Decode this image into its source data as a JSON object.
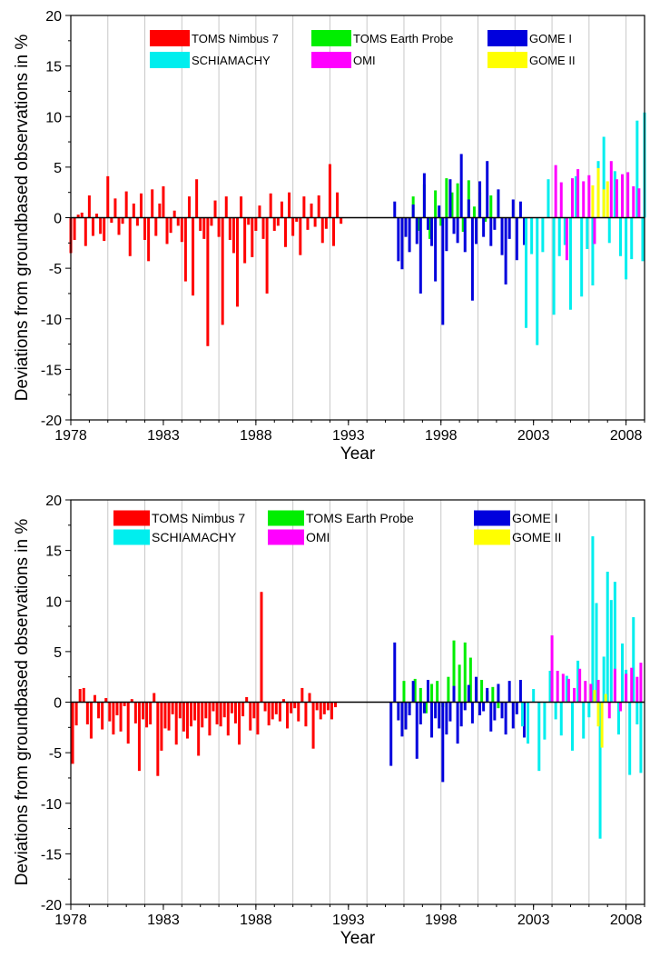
{
  "chart_data": [
    {
      "type": "bar",
      "xlabel": "Year",
      "ylabel": "Deviations from groundbased observations in %",
      "xlim": [
        1978,
        2009
      ],
      "ylim": [
        -20,
        20
      ],
      "xticks": [
        "1978",
        "1983",
        "1988",
        "1993",
        "1998",
        "2003",
        "2008"
      ],
      "yticks": [
        "20",
        "15",
        "10",
        "5",
        "0",
        "-5",
        "-10",
        "-15",
        "-20"
      ],
      "grid": "vertical",
      "legend_position": "top",
      "series": [
        {
          "name": "TOMS Nimbus 7",
          "color": "#ff0000",
          "x": [
            1978.0,
            1978.2,
            1978.4,
            1978.6,
            1978.8,
            1979.0,
            1979.2,
            1979.4,
            1979.6,
            1979.8,
            1980.0,
            1980.2,
            1980.4,
            1980.6,
            1980.8,
            1981.0,
            1981.2,
            1981.4,
            1981.6,
            1981.8,
            1982.0,
            1982.2,
            1982.4,
            1982.6,
            1982.8,
            1983.0,
            1983.2,
            1983.4,
            1983.6,
            1983.8,
            1984.0,
            1984.2,
            1984.4,
            1984.6,
            1984.8,
            1985.0,
            1985.2,
            1985.4,
            1985.6,
            1985.8,
            1986.0,
            1986.2,
            1986.4,
            1986.6,
            1986.8,
            1987.0,
            1987.2,
            1987.4,
            1987.6,
            1987.8,
            1988.0,
            1988.2,
            1988.4,
            1988.6,
            1988.8,
            1989.0,
            1989.2,
            1989.4,
            1989.6,
            1989.8,
            1990.0,
            1990.2,
            1990.4,
            1990.6,
            1990.8,
            1991.0,
            1991.2,
            1991.4,
            1991.6,
            1991.8,
            1992.0,
            1992.2,
            1992.4,
            1992.6,
            1992.8,
            1993.0
          ],
          "values": [
            -3.5,
            -2.2,
            0.3,
            0.5,
            -2.8,
            2.2,
            -1.8,
            0.4,
            -1.6,
            -2.3,
            4.1,
            -0.5,
            1.9,
            -1.7,
            -0.6,
            2.6,
            -3.8,
            1.4,
            -0.8,
            2.4,
            -2.2,
            -4.3,
            2.8,
            -1.8,
            1.4,
            3.1,
            -2.6,
            -1.5,
            0.7,
            -0.8,
            -2.4,
            -6.3,
            2.1,
            -7.7,
            3.8,
            -1.3,
            -2.1,
            -12.7,
            -0.8,
            1.7,
            -1.9,
            -10.6,
            2.1,
            -2.2,
            -3.5,
            -8.8,
            2.1,
            -4.5,
            -0.7,
            -3.9,
            -1.3,
            1.2,
            -2.1,
            -7.5,
            2.4,
            -1.3,
            -0.8,
            1.6,
            -2.9,
            2.5,
            -1.8,
            -0.4,
            -3.7,
            2.1,
            -1.2,
            1.4,
            -0.9,
            2.2,
            -2.5,
            -1.1,
            5.3,
            -2.8,
            2.5,
            -0.6,
            null,
            null
          ]
        },
        {
          "name": "TOMS Earth Probe",
          "color": "#00ee00",
          "x": [
            1996.5,
            1996.8,
            1997.1,
            1997.4,
            1997.7,
            1998.0,
            1998.3,
            1998.6,
            1998.9,
            1999.2,
            1999.5,
            1999.8,
            2000.1,
            2000.4,
            2000.7
          ],
          "values": [
            2.1,
            -1.3,
            3.3,
            -2.1,
            2.7,
            -0.8,
            3.9,
            2.5,
            3.4,
            -1.4,
            3.7,
            1.1,
            2.5,
            -0.4,
            2.2
          ]
        },
        {
          "name": "GOME I",
          "color": "#0000dd",
          "x": [
            1995.5,
            1995.7,
            1995.9,
            1996.1,
            1996.3,
            1996.5,
            1996.7,
            1996.9,
            1997.1,
            1997.3,
            1997.5,
            1997.7,
            1997.9,
            1998.1,
            1998.3,
            1998.5,
            1998.7,
            1998.9,
            1999.1,
            1999.3,
            1999.5,
            1999.7,
            1999.9,
            2000.1,
            2000.3,
            2000.5,
            2000.7,
            2000.9,
            2001.1,
            2001.3,
            2001.5,
            2001.7,
            2001.9,
            2002.1,
            2002.3,
            2002.5
          ],
          "values": [
            1.6,
            -4.3,
            -5.1,
            -1.9,
            -3.4,
            1.3,
            -2.6,
            -7.5,
            4.4,
            -1.2,
            -2.8,
            -6.3,
            1.2,
            -10.6,
            -3.3,
            3.8,
            -1.6,
            -2.5,
            6.3,
            -3.4,
            1.8,
            -8.2,
            -2.6,
            3.6,
            -1.9,
            5.6,
            -2.8,
            -1.2,
            2.8,
            -3.7,
            -6.6,
            -2.1,
            1.8,
            -4.2,
            1.6,
            -2.7
          ]
        },
        {
          "name": "SCHIAMACHY",
          "color": "#00eeee",
          "x": [
            2002.6,
            2002.9,
            2003.2,
            2003.5,
            2003.8,
            2004.1,
            2004.4,
            2004.7,
            2005.0,
            2005.3,
            2005.6,
            2005.9,
            2006.2,
            2006.5,
            2006.8,
            2007.1,
            2007.4,
            2007.7,
            2008.0,
            2008.3,
            2008.6,
            2008.9,
            2009.0
          ],
          "values": [
            -10.9,
            -3.6,
            -12.6,
            -3.4,
            3.8,
            -9.6,
            -3.8,
            -2.7,
            -9.1,
            4.1,
            -7.8,
            -3.1,
            -6.7,
            5.6,
            8.0,
            -2.5,
            4.6,
            -3.8,
            -6.1,
            -4.1,
            9.6,
            -4.3,
            10.4
          ]
        },
        {
          "name": "OMI",
          "color": "#ff00ff",
          "x": [
            2004.2,
            2004.5,
            2004.8,
            2005.1,
            2005.4,
            2005.7,
            2006.0,
            2006.3,
            2007.2,
            2007.5,
            2007.8,
            2008.1,
            2008.4,
            2008.7
          ],
          "values": [
            5.2,
            3.5,
            -4.2,
            3.9,
            4.8,
            3.6,
            4.2,
            -2.6,
            5.6,
            3.8,
            4.3,
            4.5,
            3.1,
            2.9
          ]
        },
        {
          "name": "GOME II",
          "color": "#ffff00",
          "x": [
            2006.2,
            2006.5,
            2006.8,
            2007.0
          ],
          "values": [
            3.2,
            4.9,
            2.8,
            3.6
          ]
        }
      ]
    },
    {
      "type": "bar",
      "xlabel": "Year",
      "ylabel": "Deviations from groundbased observations in %",
      "xlim": [
        1978,
        2009
      ],
      "ylim": [
        -20,
        20
      ],
      "xticks": [
        "1978",
        "1983",
        "1988",
        "1993",
        "1998",
        "2003",
        "2008"
      ],
      "yticks": [
        "20",
        "15",
        "10",
        "5",
        "0",
        "-5",
        "-10",
        "-15",
        "-20"
      ],
      "grid": "vertical",
      "legend_position": "top",
      "series": [
        {
          "name": "TOMS Nimbus 7",
          "color": "#ff0000",
          "x": [
            1978.1,
            1978.3,
            1978.5,
            1978.7,
            1978.9,
            1979.1,
            1979.3,
            1979.5,
            1979.7,
            1979.9,
            1980.1,
            1980.3,
            1980.5,
            1980.7,
            1980.9,
            1981.1,
            1981.3,
            1981.5,
            1981.7,
            1981.9,
            1982.1,
            1982.3,
            1982.5,
            1982.7,
            1982.9,
            1983.1,
            1983.3,
            1983.5,
            1983.7,
            1983.9,
            1984.1,
            1984.3,
            1984.5,
            1984.7,
            1984.9,
            1985.1,
            1985.3,
            1985.5,
            1985.7,
            1985.9,
            1986.1,
            1986.3,
            1986.5,
            1986.7,
            1986.9,
            1987.1,
            1987.3,
            1987.5,
            1987.7,
            1987.9,
            1988.1,
            1988.3,
            1988.5,
            1988.7,
            1988.9,
            1989.1,
            1989.3,
            1989.5,
            1989.7,
            1989.9,
            1990.1,
            1990.3,
            1990.5,
            1990.7,
            1990.9,
            1991.1,
            1991.3,
            1991.5,
            1991.7,
            1991.9,
            1992.1,
            1992.3
          ],
          "values": [
            -6.1,
            -2.3,
            1.3,
            1.4,
            -2.2,
            -3.6,
            0.7,
            -1.6,
            -2.7,
            0.4,
            -1.9,
            -3.2,
            -1.3,
            -2.9,
            -0.4,
            -4.1,
            0.3,
            -2.1,
            -6.8,
            -1.7,
            -2.5,
            -2.2,
            0.9,
            -7.3,
            -4.8,
            -2.6,
            -2.8,
            -1.2,
            -4.2,
            -1.6,
            -2.9,
            -3.6,
            -2.4,
            -1.8,
            -5.3,
            -2.5,
            -1.6,
            -3.3,
            -0.9,
            -2.2,
            -2.4,
            -1.5,
            -3.3,
            -1.1,
            -2.1,
            -4.2,
            -1.4,
            0.5,
            -2.8,
            -1.6,
            -3.2,
            10.9,
            -0.9,
            -2.3,
            -1.7,
            -1.2,
            -1.9,
            0.3,
            -2.6,
            -1.1,
            -0.6,
            -1.9,
            1.4,
            -2.4,
            0.9,
            -4.6,
            -0.8,
            -1.7,
            -1.2,
            -0.8,
            -1.7,
            -0.5
          ]
        },
        {
          "name": "TOMS Earth Probe",
          "color": "#00ee00",
          "x": [
            1996.0,
            1996.3,
            1996.6,
            1996.9,
            1997.2,
            1997.5,
            1997.8,
            1998.1,
            1998.4,
            1998.7,
            1999.0,
            1999.3,
            1999.6,
            1999.9,
            2000.2,
            2000.5,
            2000.8,
            2001.1
          ],
          "values": [
            2.1,
            -0.6,
            2.3,
            1.4,
            -1.1,
            1.8,
            2.1,
            -0.5,
            2.5,
            6.1,
            3.7,
            5.9,
            4.4,
            1.3,
            2.2,
            1.1,
            1.5,
            -0.6
          ]
        },
        {
          "name": "GOME I",
          "color": "#0000dd",
          "x": [
            1995.3,
            1995.5,
            1995.7,
            1995.9,
            1996.1,
            1996.3,
            1996.5,
            1996.7,
            1996.9,
            1997.1,
            1997.3,
            1997.5,
            1997.7,
            1997.9,
            1998.1,
            1998.3,
            1998.5,
            1998.7,
            1998.9,
            1999.1,
            1999.3,
            1999.5,
            1999.7,
            1999.9,
            2000.1,
            2000.3,
            2000.5,
            2000.7,
            2000.9,
            2001.1,
            2001.3,
            2001.5,
            2001.7,
            2001.9,
            2002.1,
            2002.3,
            2002.5
          ],
          "values": [
            -6.3,
            5.9,
            -1.8,
            -3.4,
            -2.7,
            -1.3,
            2.1,
            -5.6,
            -2.2,
            -1.1,
            2.2,
            -3.5,
            -1.6,
            -2.6,
            -7.9,
            -3.2,
            -1.9,
            1.6,
            -4.1,
            -2.4,
            -0.8,
            1.7,
            -2.1,
            2.5,
            -1.3,
            -0.9,
            1.4,
            -2.9,
            -1.8,
            1.8,
            -1.6,
            -3.2,
            2.1,
            -2.6,
            -1.2,
            2.2,
            -3.5
          ]
        },
        {
          "name": "SCHIAMACHY",
          "color": "#00eeee",
          "x": [
            2002.4,
            2002.7,
            2003.0,
            2003.3,
            2003.6,
            2003.9,
            2004.2,
            2004.5,
            2004.8,
            2005.1,
            2005.4,
            2005.7,
            2006.0,
            2006.2,
            2006.4,
            2006.6,
            2006.8,
            2007.0,
            2007.2,
            2007.4,
            2007.6,
            2007.8,
            2008.0,
            2008.2,
            2008.4,
            2008.6,
            2008.8
          ],
          "values": [
            -2.4,
            -4.1,
            1.3,
            -6.8,
            -3.7,
            3.1,
            -1.7,
            -3.3,
            2.6,
            -4.8,
            4.1,
            -3.6,
            -1.5,
            16.4,
            9.8,
            -13.5,
            4.5,
            12.9,
            10.1,
            11.9,
            -3.2,
            5.8,
            3.2,
            -7.2,
            8.4,
            -2.2,
            -7.0
          ]
        },
        {
          "name": "OMI",
          "color": "#ff00ff",
          "x": [
            2004.0,
            2004.3,
            2004.6,
            2004.9,
            2005.2,
            2005.5,
            2005.8,
            2006.1,
            2006.5,
            2007.1,
            2007.4,
            2007.7,
            2008.0,
            2008.3,
            2008.6,
            2008.8
          ],
          "values": [
            6.6,
            3.1,
            2.8,
            2.3,
            1.4,
            3.3,
            2.1,
            1.8,
            2.2,
            -1.6,
            3.3,
            -0.9,
            2.8,
            3.4,
            2.5,
            3.9
          ]
        },
        {
          "name": "GOME II",
          "color": "#ffff00",
          "x": [
            2006.3,
            2006.5,
            2006.7,
            2006.9
          ],
          "values": [
            1.2,
            -2.4,
            -4.5,
            0.8
          ]
        }
      ]
    }
  ]
}
